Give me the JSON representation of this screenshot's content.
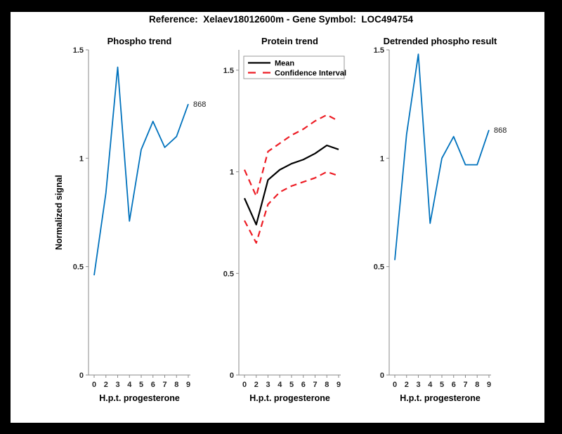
{
  "figure": {
    "title": "Reference:  Xelaev18012600m - Gene Symbol:  LOC494754",
    "background_color": "#000000",
    "canvas_color": "#ffffff"
  },
  "colors": {
    "blue": "#0072BD",
    "red": "#ED1C24",
    "black": "#000000",
    "axis": "#8a8a8a",
    "text": "#262626"
  },
  "chart_data": [
    {
      "type": "line",
      "title": "Phospho trend",
      "xlabel": "H.p.t. progesterone",
      "ylabel": "Normalized signal",
      "x_tick_labels": [
        "0",
        "2",
        "3",
        "4",
        "5",
        "6",
        "7",
        "8",
        "9"
      ],
      "y_tick_labels": [
        "0",
        "0.5",
        "1",
        "1.5"
      ],
      "y_ticks": [
        0,
        0.5,
        1,
        1.5
      ],
      "ylim": [
        0,
        1.5
      ],
      "grid": false,
      "legend": null,
      "end_label": "868",
      "series": [
        {
          "name": "phospho-signal",
          "color_key": "blue",
          "style": "solid",
          "values": [
            0.46,
            0.84,
            1.42,
            0.71,
            1.04,
            1.17,
            1.05,
            1.1,
            1.25
          ]
        }
      ]
    },
    {
      "type": "line",
      "title": "Protein trend",
      "xlabel": "H.p.t. progesterone",
      "ylabel": "",
      "x_tick_labels": [
        "0",
        "2",
        "3",
        "4",
        "5",
        "6",
        "7",
        "8",
        "9"
      ],
      "y_tick_labels": [
        "0",
        "0.5",
        "1",
        "1.5"
      ],
      "y_ticks": [
        0,
        0.5,
        1,
        1.5
      ],
      "ylim": [
        0,
        1.6
      ],
      "grid": false,
      "legend": {
        "position": "northwest",
        "entries": [
          {
            "label": "Mean",
            "color_key": "black",
            "style": "solid"
          },
          {
            "label": "Confidence Interval",
            "color_key": "red",
            "style": "dashed"
          }
        ]
      },
      "end_label": null,
      "series": [
        {
          "name": "protein-mean",
          "color_key": "black",
          "style": "solid",
          "values": [
            0.87,
            0.74,
            0.96,
            1.01,
            1.04,
            1.06,
            1.09,
            1.13,
            1.11
          ]
        },
        {
          "name": "confidence-upper",
          "color_key": "red",
          "style": "dashed",
          "values": [
            1.01,
            0.88,
            1.1,
            1.14,
            1.18,
            1.21,
            1.25,
            1.28,
            1.25
          ]
        },
        {
          "name": "confidence-lower",
          "color_key": "red",
          "style": "dashed",
          "values": [
            0.76,
            0.65,
            0.84,
            0.9,
            0.93,
            0.95,
            0.97,
            1.0,
            0.98
          ]
        }
      ]
    },
    {
      "type": "line",
      "title": "Detrended phospho result",
      "xlabel": "H.p.t. progesterone",
      "ylabel": "",
      "x_tick_labels": [
        "0",
        "2",
        "3",
        "4",
        "5",
        "6",
        "7",
        "8",
        "9"
      ],
      "y_tick_labels": [
        "0",
        "0.5",
        "1",
        "1.5"
      ],
      "y_ticks": [
        0,
        0.5,
        1,
        1.5
      ],
      "ylim": [
        0,
        1.5
      ],
      "grid": false,
      "legend": null,
      "end_label": "868",
      "series": [
        {
          "name": "detrended-phospho",
          "color_key": "blue",
          "style": "solid",
          "values": [
            0.53,
            1.11,
            1.48,
            0.7,
            1.0,
            1.1,
            0.97,
            0.97,
            1.13
          ]
        }
      ]
    }
  ]
}
